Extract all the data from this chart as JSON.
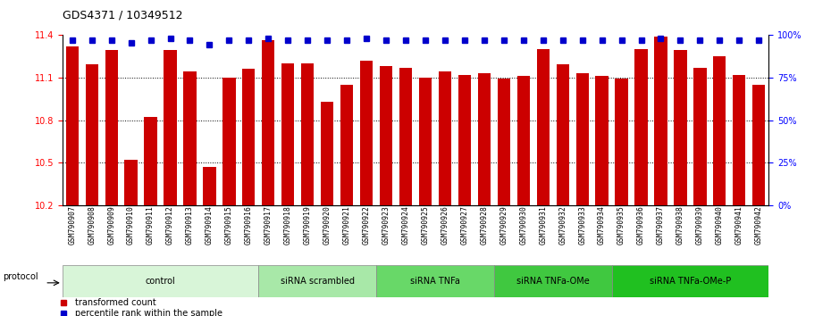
{
  "title": "GDS4371 / 10349512",
  "samples": [
    "GSM790907",
    "GSM790908",
    "GSM790909",
    "GSM790910",
    "GSM790911",
    "GSM790912",
    "GSM790913",
    "GSM790914",
    "GSM790915",
    "GSM790916",
    "GSM790917",
    "GSM790918",
    "GSM790919",
    "GSM790920",
    "GSM790921",
    "GSM790922",
    "GSM790923",
    "GSM790924",
    "GSM790925",
    "GSM790926",
    "GSM790927",
    "GSM790928",
    "GSM790929",
    "GSM790930",
    "GSM790931",
    "GSM790932",
    "GSM790933",
    "GSM790934",
    "GSM790935",
    "GSM790936",
    "GSM790937",
    "GSM790938",
    "GSM790939",
    "GSM790940",
    "GSM790941",
    "GSM790942"
  ],
  "bar_values": [
    11.32,
    11.19,
    11.29,
    10.52,
    10.82,
    11.29,
    11.14,
    10.47,
    11.1,
    11.16,
    11.36,
    11.2,
    11.2,
    10.93,
    11.05,
    11.22,
    11.18,
    11.17,
    11.1,
    11.14,
    11.12,
    11.13,
    11.09,
    11.11,
    11.3,
    11.19,
    11.13,
    11.11,
    11.09,
    11.3,
    11.39,
    11.29,
    11.17,
    11.25,
    11.12,
    11.05
  ],
  "percentile_values": [
    97,
    97,
    97,
    95,
    97,
    98,
    97,
    94,
    97,
    97,
    98,
    97,
    97,
    97,
    97,
    98,
    97,
    97,
    97,
    97,
    97,
    97,
    97,
    97,
    97,
    97,
    97,
    97,
    97,
    97,
    98,
    97,
    97,
    97,
    97,
    97
  ],
  "ymin": 10.2,
  "ymax": 11.4,
  "ylim_right": [
    0,
    100
  ],
  "yticks_left": [
    10.2,
    10.5,
    10.8,
    11.1,
    11.4
  ],
  "yticks_right": [
    0,
    25,
    50,
    75,
    100
  ],
  "bar_color": "#cc0000",
  "percentile_color": "#0000cc",
  "groups": [
    {
      "label": "control",
      "start": 0,
      "end": 10
    },
    {
      "label": "siRNA scrambled",
      "start": 10,
      "end": 16
    },
    {
      "label": "siRNA TNFa",
      "start": 16,
      "end": 22
    },
    {
      "label": "siRNA TNFa-OMe",
      "start": 22,
      "end": 28
    },
    {
      "label": "siRNA TNFa-OMe-P",
      "start": 28,
      "end": 36
    }
  ],
  "group_colors": [
    "#d8f5d8",
    "#a8e8a8",
    "#68d868",
    "#40c840",
    "#20c020"
  ],
  "protocol_label": "protocol",
  "legend_red": "transformed count",
  "legend_blue": "percentile rank within the sample"
}
